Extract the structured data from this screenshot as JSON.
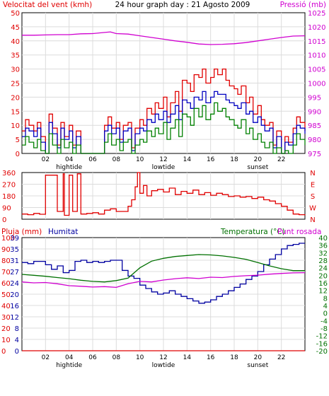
{
  "colors": {
    "wind": "#e00000",
    "gust": "#0000c0",
    "wind_avg": "#008000",
    "pressure": "#d000d0",
    "direction": "#e00000",
    "rain": "#e00000",
    "humidity": "#0000a0",
    "temperature": "#007000",
    "dewpoint": "#d000d0",
    "grid": "#dcdcdc",
    "frame": "#000000"
  },
  "chart_data": [
    {
      "type": "line",
      "panel": "wind-pressure",
      "title": "24 hour graph day : 21 Agosto 2009",
      "left_label": "Velocitat del vent (kmh)",
      "right_label": "Pressió (mb)",
      "xlim": [
        0,
        24
      ],
      "x_ticks": [
        "02",
        "04",
        "06",
        "08",
        "10",
        "12",
        "14",
        "16",
        "18",
        "20",
        "22"
      ],
      "x_tick_values": [
        2,
        4,
        6,
        8,
        10,
        12,
        14,
        16,
        18,
        20,
        22
      ],
      "x_annotations": [
        {
          "x": 4,
          "text": "hightide"
        },
        {
          "x": 12,
          "text": "lowtide"
        },
        {
          "x": 20,
          "text": "sunset"
        }
      ],
      "ylim_left": [
        0,
        50
      ],
      "left_ticks": [
        0,
        5,
        10,
        15,
        20,
        25,
        30,
        35,
        40,
        45,
        50
      ],
      "ylim_right": [
        975,
        1025
      ],
      "right_ticks": [
        975,
        980,
        985,
        990,
        995,
        1000,
        1005,
        1010,
        1015,
        1020,
        1025
      ],
      "grid": true,
      "series": [
        {
          "key": "wind",
          "axis": "left",
          "step": true,
          "x": [
            0,
            0.3,
            0.6,
            1.0,
            1.3,
            1.6,
            2.0,
            2.3,
            2.6,
            3.0,
            3.3,
            3.6,
            4.0,
            4.3,
            4.6,
            5.0,
            5.5,
            6.0,
            6.5,
            7.0,
            7.3,
            7.6,
            8.0,
            8.3,
            8.6,
            9.0,
            9.3,
            9.6,
            10.0,
            10.3,
            10.6,
            11.0,
            11.3,
            11.6,
            12.0,
            12.3,
            12.6,
            13.0,
            13.3,
            13.6,
            14.0,
            14.3,
            14.6,
            15.0,
            15.3,
            15.6,
            16.0,
            16.3,
            16.6,
            17.0,
            17.3,
            17.6,
            18.0,
            18.3,
            18.6,
            19.0,
            19.3,
            19.6,
            20.0,
            20.3,
            20.6,
            21.0,
            21.3,
            21.6,
            22.0,
            22.3,
            22.6,
            23.0,
            23.3,
            23.6,
            24.0
          ],
          "y": [
            8,
            12,
            10,
            8,
            11,
            6,
            0,
            14,
            9,
            3,
            11,
            6,
            10,
            3,
            8,
            0,
            0,
            0,
            0,
            10,
            13,
            9,
            11,
            5,
            10,
            11,
            2,
            9,
            12,
            10,
            16,
            14,
            18,
            16,
            20,
            13,
            18,
            22,
            15,
            26,
            25,
            22,
            28,
            27,
            30,
            25,
            27,
            30,
            28,
            30,
            26,
            24,
            23,
            21,
            24,
            18,
            20,
            14,
            17,
            12,
            10,
            11,
            3,
            8,
            0,
            6,
            4,
            9,
            13,
            11,
            8
          ]
        },
        {
          "key": "gust",
          "axis": "left",
          "step": true,
          "x": [
            0,
            0.3,
            0.6,
            1.0,
            1.3,
            1.6,
            2.0,
            2.3,
            2.6,
            3.0,
            3.3,
            3.6,
            4.0,
            4.3,
            4.6,
            5.0,
            5.5,
            6.0,
            6.5,
            7.0,
            7.3,
            7.6,
            8.0,
            8.3,
            8.6,
            9.0,
            9.3,
            9.6,
            10.0,
            10.3,
            10.6,
            11.0,
            11.3,
            11.6,
            12.0,
            12.3,
            12.6,
            13.0,
            13.3,
            13.6,
            14.0,
            14.3,
            14.6,
            15.0,
            15.3,
            15.6,
            16.0,
            16.3,
            16.6,
            17.0,
            17.3,
            17.6,
            18.0,
            18.3,
            18.6,
            19.0,
            19.3,
            19.6,
            20.0,
            20.3,
            20.6,
            21.0,
            21.3,
            21.6,
            22.0,
            22.3,
            22.6,
            23.0,
            23.3,
            23.6,
            24.0
          ],
          "y": [
            6,
            9,
            8,
            6,
            9,
            4,
            0,
            11,
            7,
            2,
            9,
            5,
            8,
            2,
            6,
            0,
            0,
            0,
            0,
            8,
            10,
            7,
            9,
            4,
            8,
            9,
            1,
            7,
            9,
            8,
            12,
            11,
            14,
            12,
            15,
            11,
            14,
            17,
            12,
            19,
            18,
            16,
            20,
            19,
            22,
            18,
            20,
            22,
            21,
            21,
            19,
            18,
            17,
            16,
            18,
            14,
            15,
            11,
            13,
            10,
            8,
            9,
            2,
            6,
            0,
            4,
            3,
            7,
            10,
            9,
            7
          ]
        },
        {
          "key": "wind_avg",
          "axis": "left",
          "step": true,
          "x": [
            0,
            0.3,
            0.6,
            1.0,
            1.3,
            1.6,
            2.0,
            2.3,
            2.6,
            3.0,
            3.3,
            3.6,
            4.0,
            4.3,
            4.6,
            5.0,
            5.5,
            6.0,
            6.5,
            7.0,
            7.3,
            7.6,
            8.0,
            8.3,
            8.6,
            9.0,
            9.3,
            9.6,
            10.0,
            10.3,
            10.6,
            11.0,
            11.3,
            11.6,
            12.0,
            12.3,
            12.6,
            13.0,
            13.3,
            13.6,
            14.0,
            14.3,
            14.6,
            15.0,
            15.3,
            15.6,
            16.0,
            16.3,
            16.6,
            17.0,
            17.3,
            17.6,
            18.0,
            18.3,
            18.6,
            19.0,
            19.3,
            19.6,
            20.0,
            20.3,
            20.6,
            21.0,
            21.3,
            21.6,
            22.0,
            22.3,
            22.6,
            23.0,
            23.3,
            23.6,
            24.0
          ],
          "y": [
            3,
            6,
            4,
            2,
            5,
            1,
            0,
            7,
            3,
            0,
            5,
            2,
            4,
            0,
            3,
            0,
            0,
            0,
            0,
            4,
            7,
            3,
            5,
            1,
            4,
            5,
            0,
            3,
            5,
            4,
            8,
            6,
            9,
            7,
            11,
            5,
            9,
            12,
            6,
            14,
            13,
            10,
            16,
            13,
            17,
            12,
            14,
            18,
            15,
            16,
            13,
            12,
            10,
            9,
            12,
            7,
            9,
            5,
            7,
            4,
            2,
            4,
            0,
            2,
            0,
            1,
            0,
            3,
            7,
            5,
            3
          ]
        },
        {
          "key": "pressure",
          "axis": "right",
          "step": false,
          "x": [
            0,
            1,
            2,
            3,
            4,
            5,
            6,
            7,
            7.5,
            8,
            9,
            10,
            11,
            12,
            13,
            14,
            15,
            16,
            17,
            18,
            19,
            20,
            21,
            22,
            23,
            24
          ],
          "y": [
            1017,
            1017,
            1017.1,
            1017.2,
            1017.2,
            1017.5,
            1017.6,
            1018,
            1018.2,
            1017.6,
            1017.4,
            1016.8,
            1016.2,
            1015.6,
            1015,
            1014.5,
            1013.9,
            1013.7,
            1013.8,
            1014,
            1014.4,
            1015,
            1015.6,
            1016.2,
            1016.7,
            1016.8
          ]
        }
      ]
    },
    {
      "type": "line",
      "panel": "wind-direction",
      "ylim": [
        0,
        360
      ],
      "left_ticks": [
        0,
        90,
        180,
        270,
        360
      ],
      "right_ticks": [
        "N",
        "E",
        "S",
        "W",
        "N"
      ],
      "xlim": [
        0,
        24
      ],
      "grid": true,
      "series": [
        {
          "key": "direction",
          "step": true,
          "x": [
            0,
            0.5,
            1.0,
            1.5,
            2.0,
            2.5,
            3.0,
            3.5,
            3.6,
            4.0,
            4.3,
            4.7,
            5.0,
            5.5,
            6.0,
            6.5,
            7.0,
            7.5,
            8.0,
            8.5,
            9.0,
            9.3,
            9.6,
            9.8,
            10.0,
            10.3,
            10.6,
            11.0,
            11.5,
            12.0,
            12.5,
            13.0,
            13.5,
            14.0,
            14.5,
            15.0,
            15.5,
            16.0,
            16.5,
            17.0,
            17.5,
            18.0,
            18.5,
            19.0,
            19.5,
            20.0,
            20.5,
            21.0,
            21.5,
            22.0,
            22.5,
            23.0,
            23.5,
            24.0
          ],
          "y": [
            40,
            35,
            45,
            38,
            340,
            340,
            60,
            350,
            30,
            340,
            60,
            350,
            40,
            45,
            50,
            40,
            70,
            80,
            60,
            60,
            100,
            150,
            250,
            360,
            200,
            260,
            180,
            220,
            230,
            210,
            240,
            190,
            215,
            200,
            225,
            190,
            205,
            185,
            200,
            190,
            175,
            180,
            170,
            175,
            160,
            170,
            150,
            140,
            120,
            100,
            70,
            40,
            35,
            30
          ]
        }
      ]
    },
    {
      "type": "line",
      "panel": "rain-humidity-temperature",
      "labels": {
        "rain": "Pluja (mm)",
        "humidity": "Humitat",
        "temperature": "Temperatura (°C)",
        "dewpoint": "Punt rosada"
      },
      "xlim": [
        0,
        24
      ],
      "x_ticks": [
        "02",
        "04",
        "06",
        "08",
        "10",
        "12",
        "14",
        "16",
        "18",
        "20",
        "22"
      ],
      "x_tick_values": [
        2,
        4,
        6,
        8,
        10,
        12,
        14,
        16,
        18,
        20,
        22
      ],
      "x_annotations": [
        {
          "x": 4,
          "text": "hightide"
        },
        {
          "x": 12,
          "text": "lowtide"
        },
        {
          "x": 20,
          "text": "sunset"
        }
      ],
      "rain_ticks": [
        0,
        10,
        20,
        30,
        40,
        50,
        60,
        70,
        80,
        90,
        100
      ],
      "humidity_ticks": [
        0,
        4,
        8,
        12,
        16,
        20,
        24,
        27,
        31,
        35,
        39
      ],
      "ylim_rain": [
        0,
        100
      ],
      "ylim_temperature": [
        -20,
        40
      ],
      "temperature_ticks": [
        -20,
        -16,
        -12,
        -8,
        -4,
        0,
        4,
        8,
        12,
        16,
        20,
        24,
        28,
        32,
        36,
        40
      ],
      "grid": true,
      "series": [
        {
          "key": "rain",
          "axis": "rain",
          "step": false,
          "x": [
            0,
            24
          ],
          "y": [
            0,
            0
          ]
        },
        {
          "key": "humidity",
          "axis": "rain",
          "step": true,
          "x": [
            0,
            0.5,
            1.0,
            1.5,
            2.0,
            2.5,
            3.0,
            3.5,
            4.0,
            4.5,
            5.0,
            5.5,
            6.0,
            6.5,
            7.0,
            7.5,
            8.0,
            8.5,
            9.0,
            9.5,
            10.0,
            10.5,
            11.0,
            11.5,
            12.0,
            12.5,
            13.0,
            13.5,
            14.0,
            14.5,
            15.0,
            15.5,
            16.0,
            16.5,
            17.0,
            17.5,
            18.0,
            18.5,
            19.0,
            19.5,
            20.0,
            20.5,
            21.0,
            21.5,
            22.0,
            22.5,
            23.0,
            23.5,
            24.0
          ],
          "y": [
            78,
            77,
            79,
            79,
            76,
            72,
            75,
            69,
            71,
            79,
            80,
            78,
            79,
            78,
            79,
            80,
            80,
            71,
            66,
            64,
            58,
            55,
            52,
            50,
            51,
            53,
            50,
            48,
            46,
            44,
            42,
            43,
            45,
            48,
            50,
            53,
            56,
            59,
            63,
            66,
            70,
            76,
            81,
            85,
            90,
            93,
            94,
            95,
            95
          ]
        },
        {
          "key": "temperature",
          "axis": "temperature",
          "step": false,
          "x": [
            0,
            1,
            2,
            3,
            4,
            5,
            6,
            7,
            8,
            9,
            10,
            11,
            12,
            13,
            14,
            15,
            16,
            17,
            18,
            19,
            20,
            21,
            22,
            23,
            24
          ],
          "y": [
            20.5,
            20,
            19.5,
            18.8,
            18.2,
            17.4,
            16.8,
            16.5,
            17.2,
            18.5,
            24,
            27.5,
            29,
            30,
            30.5,
            31,
            30.8,
            30.3,
            29.5,
            28.5,
            26.8,
            25,
            23.5,
            22.5,
            22.5
          ]
        },
        {
          "key": "dewpoint",
          "axis": "temperature",
          "step": false,
          "x": [
            0,
            1,
            2,
            3,
            4,
            5,
            6,
            7,
            8,
            9,
            10,
            11,
            12,
            13,
            14,
            15,
            16,
            17,
            18,
            19,
            20,
            21,
            22,
            23,
            24
          ],
          "y": [
            16.5,
            16,
            16.2,
            15.5,
            14.5,
            14.2,
            13.8,
            14,
            13.6,
            15.5,
            16.8,
            16.5,
            17.5,
            18.2,
            18.7,
            18.3,
            19,
            18.8,
            19.4,
            19.8,
            20.1,
            20.6,
            21,
            21.3,
            21.4
          ]
        }
      ]
    }
  ]
}
